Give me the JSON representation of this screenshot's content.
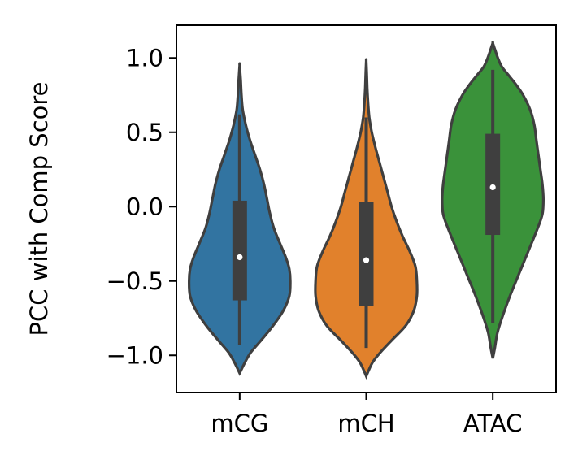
{
  "chart_data": {
    "type": "violin",
    "xlabel": "",
    "ylabel": "PCC with Comp Score",
    "categories": [
      "mCG",
      "mCH",
      "ATAC"
    ],
    "ylim": [
      -1.25,
      1.22
    ],
    "yticks": [
      1.0,
      0.5,
      0.0,
      -0.5,
      -1.0
    ],
    "ytick_labels": [
      "1.0",
      "0.5",
      "0.0",
      "−0.5",
      "−1.0"
    ],
    "grid": false,
    "legend": "none",
    "series": [
      {
        "category": "mCG",
        "color": "#3274a1",
        "median": -0.34,
        "q1": -0.63,
        "q3": 0.04,
        "whisker_low": -0.93,
        "whisker_high": 0.62,
        "density": [
          [
            -1.12,
            0
          ],
          [
            -1.05,
            0.1
          ],
          [
            -0.98,
            0.22
          ],
          [
            -0.9,
            0.42
          ],
          [
            -0.8,
            0.66
          ],
          [
            -0.7,
            0.86
          ],
          [
            -0.6,
            0.98
          ],
          [
            -0.5,
            1.0
          ],
          [
            -0.42,
            0.98
          ],
          [
            -0.35,
            0.92
          ],
          [
            -0.25,
            0.8
          ],
          [
            -0.15,
            0.68
          ],
          [
            -0.05,
            0.6
          ],
          [
            0.05,
            0.54
          ],
          [
            0.15,
            0.48
          ],
          [
            0.25,
            0.4
          ],
          [
            0.35,
            0.3
          ],
          [
            0.45,
            0.2
          ],
          [
            0.55,
            0.12
          ],
          [
            0.65,
            0.06
          ],
          [
            0.75,
            0.035
          ],
          [
            0.85,
            0.02
          ],
          [
            0.95,
            0
          ]
        ]
      },
      {
        "category": "mCH",
        "color": "#e1812c",
        "median": -0.36,
        "q1": -0.67,
        "q3": 0.03,
        "whisker_low": -0.95,
        "whisker_high": 0.6,
        "density": [
          [
            -1.14,
            0
          ],
          [
            -1.05,
            0.12
          ],
          [
            -0.98,
            0.28
          ],
          [
            -0.9,
            0.5
          ],
          [
            -0.8,
            0.78
          ],
          [
            -0.7,
            0.94
          ],
          [
            -0.6,
            1.0
          ],
          [
            -0.5,
            1.0
          ],
          [
            -0.4,
            0.97
          ],
          [
            -0.3,
            0.86
          ],
          [
            -0.2,
            0.72
          ],
          [
            -0.1,
            0.6
          ],
          [
            0.0,
            0.5
          ],
          [
            0.1,
            0.42
          ],
          [
            0.2,
            0.34
          ],
          [
            0.3,
            0.26
          ],
          [
            0.4,
            0.18
          ],
          [
            0.5,
            0.11
          ],
          [
            0.6,
            0.06
          ],
          [
            0.7,
            0.035
          ],
          [
            0.8,
            0.02
          ],
          [
            0.9,
            0.01
          ],
          [
            0.98,
            0
          ]
        ]
      },
      {
        "category": "ATAC",
        "color": "#3a923a",
        "median": 0.13,
        "q1": -0.19,
        "q3": 0.49,
        "whisker_low": -0.78,
        "whisker_high": 0.92,
        "density": [
          [
            -1.02,
            0
          ],
          [
            -0.95,
            0.04
          ],
          [
            -0.85,
            0.09
          ],
          [
            -0.75,
            0.18
          ],
          [
            -0.6,
            0.34
          ],
          [
            -0.45,
            0.52
          ],
          [
            -0.3,
            0.7
          ],
          [
            -0.15,
            0.88
          ],
          [
            -0.05,
            0.98
          ],
          [
            0.05,
            1.0
          ],
          [
            0.15,
            0.98
          ],
          [
            0.25,
            0.94
          ],
          [
            0.35,
            0.9
          ],
          [
            0.45,
            0.86
          ],
          [
            0.55,
            0.82
          ],
          [
            0.65,
            0.74
          ],
          [
            0.75,
            0.6
          ],
          [
            0.82,
            0.46
          ],
          [
            0.88,
            0.32
          ],
          [
            0.94,
            0.18
          ],
          [
            1.0,
            0.1
          ],
          [
            1.05,
            0.05
          ],
          [
            1.1,
            0
          ]
        ]
      }
    ]
  }
}
